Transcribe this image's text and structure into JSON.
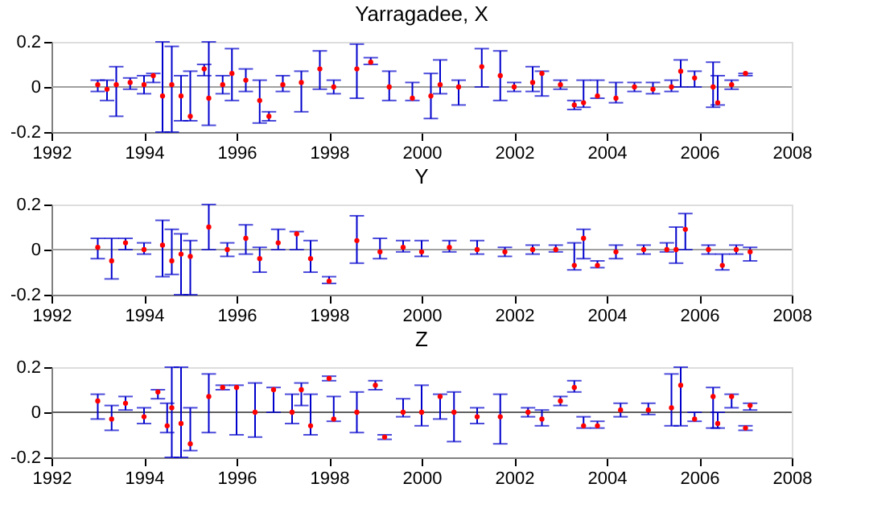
{
  "chart_data": [
    {
      "type": "scatter",
      "title": "Yarragadee, X",
      "xlim": [
        1992,
        2008
      ],
      "xticks": [
        1992,
        1994,
        1996,
        1998,
        2000,
        2002,
        2004,
        2006,
        2008
      ],
      "ylim": [
        -0.2,
        0.2
      ],
      "yticks": [
        -0.2,
        0,
        0.2
      ],
      "grid": false,
      "marker": "circle",
      "ref_lines": [
        {
          "axis": "y",
          "value": 0,
          "color": "#a0a0a0"
        }
      ],
      "x": [
        1993.0,
        1993.2,
        1993.4,
        1993.7,
        1994.0,
        1994.2,
        1994.4,
        1994.6,
        1994.8,
        1995.0,
        1995.3,
        1995.4,
        1995.7,
        1995.9,
        1996.2,
        1996.5,
        1996.7,
        1997.0,
        1997.4,
        1997.8,
        1998.1,
        1998.6,
        1998.9,
        1999.3,
        1999.8,
        2000.2,
        2000.4,
        2000.8,
        2001.3,
        2001.7,
        2002.0,
        2002.4,
        2002.6,
        2003.0,
        2003.3,
        2003.5,
        2003.8,
        2004.2,
        2004.6,
        2005.0,
        2005.4,
        2005.6,
        2005.9,
        2006.3,
        2006.4,
        2006.7,
        2007.0
      ],
      "series": [
        {
          "color": "#ff0000",
          "values": [
            0.01,
            -0.01,
            0.01,
            0.02,
            0.01,
            0.05,
            -0.04,
            0.01,
            -0.04,
            -0.13,
            0.08,
            -0.05,
            0.01,
            0.06,
            0.03,
            -0.06,
            -0.13,
            0.01,
            0.02,
            0.08,
            0.0,
            0.08,
            0.11,
            0.0,
            -0.05,
            -0.04,
            0.01,
            0.0,
            0.09,
            0.05,
            0.0,
            0.02,
            0.06,
            0.01,
            -0.08,
            -0.07,
            -0.04,
            -0.05,
            0.0,
            -0.01,
            0.0,
            0.07,
            0.04,
            0.0,
            -0.07,
            0.01,
            0.06
          ],
          "errors": [
            [
              -0.02,
              0.03
            ],
            [
              -0.06,
              0.03
            ],
            [
              -0.13,
              0.09
            ],
            [
              -0.01,
              0.04
            ],
            [
              -0.03,
              0.05
            ],
            [
              0.02,
              0.06
            ],
            [
              -0.2,
              0.2
            ],
            [
              -0.2,
              0.18
            ],
            [
              -0.15,
              0.05
            ],
            [
              -0.15,
              0.07
            ],
            [
              0.05,
              0.1
            ],
            [
              -0.17,
              0.2
            ],
            [
              -0.03,
              0.05
            ],
            [
              -0.06,
              0.17
            ],
            [
              -0.02,
              0.08
            ],
            [
              -0.16,
              0.03
            ],
            [
              -0.15,
              -0.11
            ],
            [
              -0.02,
              0.05
            ],
            [
              -0.11,
              0.07
            ],
            [
              -0.01,
              0.16
            ],
            [
              -0.03,
              0.03
            ],
            [
              -0.05,
              0.19
            ],
            [
              0.1,
              0.13
            ],
            [
              -0.06,
              0.07
            ],
            [
              -0.06,
              0.02
            ],
            [
              -0.14,
              0.06
            ],
            [
              -0.03,
              0.12
            ],
            [
              -0.08,
              0.03
            ],
            [
              0.0,
              0.17
            ],
            [
              -0.06,
              0.16
            ],
            [
              -0.02,
              0.02
            ],
            [
              -0.02,
              0.09
            ],
            [
              -0.04,
              0.07
            ],
            [
              -0.01,
              0.03
            ],
            [
              -0.1,
              -0.06
            ],
            [
              -0.09,
              0.03
            ],
            [
              -0.05,
              0.03
            ],
            [
              -0.07,
              0.02
            ],
            [
              -0.02,
              0.02
            ],
            [
              -0.03,
              0.02
            ],
            [
              -0.02,
              0.03
            ],
            [
              0.0,
              0.12
            ],
            [
              0.0,
              0.07
            ],
            [
              -0.09,
              0.11
            ],
            [
              -0.08,
              0.05
            ],
            [
              -0.01,
              0.03
            ],
            [
              0.05,
              0.06
            ]
          ]
        }
      ]
    },
    {
      "type": "scatter",
      "title": "Y",
      "xlim": [
        1992,
        2008
      ],
      "xticks": [
        1992,
        1994,
        1996,
        1998,
        2000,
        2002,
        2004,
        2006,
        2008
      ],
      "ylim": [
        -0.2,
        0.2
      ],
      "yticks": [
        -0.2,
        0,
        0.2
      ],
      "grid": false,
      "marker": "circle",
      "ref_lines": [
        {
          "axis": "y",
          "value": 0,
          "color": "#a0a0a0"
        }
      ],
      "x": [
        1993.0,
        1993.3,
        1993.6,
        1994.0,
        1994.4,
        1994.6,
        1994.8,
        1995.0,
        1995.4,
        1995.8,
        1996.2,
        1996.5,
        1996.9,
        1997.3,
        1997.6,
        1998.0,
        1998.6,
        1999.1,
        1999.6,
        2000.0,
        2000.6,
        2001.2,
        2001.8,
        2002.4,
        2002.9,
        2003.3,
        2003.5,
        2003.8,
        2004.2,
        2004.8,
        2005.3,
        2005.5,
        2005.7,
        2006.2,
        2006.5,
        2006.8,
        2007.1
      ],
      "series": [
        {
          "color": "#ff0000",
          "values": [
            0.01,
            -0.05,
            0.03,
            0.0,
            0.02,
            -0.05,
            -0.02,
            -0.03,
            0.1,
            0.0,
            0.05,
            -0.04,
            0.03,
            0.07,
            -0.04,
            -0.14,
            0.04,
            -0.01,
            0.01,
            -0.01,
            0.01,
            0.0,
            -0.01,
            0.0,
            0.0,
            -0.07,
            0.05,
            -0.07,
            -0.01,
            0.0,
            0.0,
            0.0,
            0.09,
            0.0,
            -0.07,
            0.0,
            -0.01
          ],
          "errors": [
            [
              -0.04,
              0.05
            ],
            [
              -0.13,
              0.05
            ],
            [
              0.0,
              0.05
            ],
            [
              -0.02,
              0.03
            ],
            [
              -0.12,
              0.13
            ],
            [
              -0.11,
              0.09
            ],
            [
              -0.2,
              0.07
            ],
            [
              -0.2,
              0.04
            ],
            [
              0.0,
              0.2
            ],
            [
              -0.03,
              0.03
            ],
            [
              -0.02,
              0.11
            ],
            [
              -0.1,
              0.01
            ],
            [
              0.0,
              0.09
            ],
            [
              0.0,
              0.08
            ],
            [
              -0.1,
              0.04
            ],
            [
              -0.15,
              -0.12
            ],
            [
              -0.06,
              0.15
            ],
            [
              -0.04,
              0.05
            ],
            [
              -0.01,
              0.04
            ],
            [
              -0.03,
              0.04
            ],
            [
              -0.01,
              0.04
            ],
            [
              -0.02,
              0.04
            ],
            [
              -0.03,
              0.01
            ],
            [
              -0.02,
              0.02
            ],
            [
              -0.01,
              0.02
            ],
            [
              -0.09,
              0.03
            ],
            [
              -0.04,
              0.09
            ],
            [
              -0.08,
              -0.05
            ],
            [
              -0.04,
              0.02
            ],
            [
              -0.02,
              0.02
            ],
            [
              -0.01,
              0.03
            ],
            [
              -0.06,
              0.1
            ],
            [
              0.0,
              0.16
            ],
            [
              -0.02,
              0.02
            ],
            [
              -0.09,
              -0.02
            ],
            [
              -0.02,
              0.02
            ],
            [
              -0.05,
              0.01
            ]
          ]
        }
      ]
    },
    {
      "type": "scatter",
      "title": "Z",
      "xlim": [
        1992,
        2008
      ],
      "xticks": [
        1992,
        1994,
        1996,
        1998,
        2000,
        2002,
        2004,
        2006,
        2008
      ],
      "ylim": [
        -0.2,
        0.2
      ],
      "yticks": [
        -0.2,
        0,
        0.2
      ],
      "grid": false,
      "marker": "circle",
      "ref_lines": [
        {
          "axis": "y",
          "value": 0,
          "color": "#606060"
        }
      ],
      "x": [
        1993.0,
        1993.3,
        1993.6,
        1994.0,
        1994.3,
        1994.5,
        1994.6,
        1994.8,
        1995.0,
        1995.4,
        1995.7,
        1996.0,
        1996.4,
        1996.8,
        1997.2,
        1997.4,
        1997.6,
        1998.0,
        1998.1,
        1998.6,
        1999.0,
        1999.2,
        1999.6,
        2000.0,
        2000.4,
        2000.7,
        2001.2,
        2001.7,
        2002.3,
        2002.6,
        2003.0,
        2003.3,
        2003.5,
        2003.8,
        2004.3,
        2004.9,
        2005.4,
        2005.6,
        2005.9,
        2006.3,
        2006.4,
        2006.7,
        2007.0,
        2007.1
      ],
      "series": [
        {
          "color": "#ff0000",
          "values": [
            0.05,
            -0.03,
            0.04,
            -0.02,
            0.09,
            -0.06,
            0.02,
            -0.05,
            -0.14,
            0.07,
            0.11,
            0.11,
            0.0,
            0.1,
            0.0,
            0.1,
            -0.06,
            0.15,
            -0.03,
            0.0,
            0.12,
            -0.11,
            0.0,
            0.0,
            0.07,
            0.0,
            -0.02,
            -0.02,
            0.0,
            -0.03,
            0.05,
            0.11,
            -0.06,
            -0.06,
            0.01,
            0.01,
            0.02,
            0.12,
            -0.03,
            0.07,
            -0.05,
            0.07,
            -0.07,
            0.03
          ],
          "errors": [
            [
              -0.03,
              0.08
            ],
            [
              -0.08,
              0.03
            ],
            [
              0.01,
              0.07
            ],
            [
              -0.05,
              0.02
            ],
            [
              0.06,
              0.1
            ],
            [
              -0.09,
              0.04
            ],
            [
              -0.2,
              0.2
            ],
            [
              -0.2,
              0.2
            ],
            [
              -0.17,
              0.02
            ],
            [
              -0.09,
              0.17
            ],
            [
              0.1,
              0.12
            ],
            [
              -0.1,
              0.12
            ],
            [
              -0.11,
              0.13
            ],
            [
              0.0,
              0.11
            ],
            [
              -0.05,
              0.08
            ],
            [
              0.03,
              0.13
            ],
            [
              -0.1,
              0.08
            ],
            [
              0.14,
              0.16
            ],
            [
              -0.04,
              0.07
            ],
            [
              -0.09,
              0.09
            ],
            [
              0.1,
              0.14
            ],
            [
              -0.12,
              -0.1
            ],
            [
              -0.02,
              0.06
            ],
            [
              -0.06,
              0.12
            ],
            [
              -0.03,
              0.08
            ],
            [
              -0.13,
              0.09
            ],
            [
              -0.05,
              0.02
            ],
            [
              -0.14,
              0.08
            ],
            [
              -0.02,
              0.02
            ],
            [
              -0.06,
              0.01
            ],
            [
              0.03,
              0.07
            ],
            [
              0.09,
              0.14
            ],
            [
              -0.07,
              -0.02
            ],
            [
              -0.07,
              -0.04
            ],
            [
              -0.02,
              0.04
            ],
            [
              -0.01,
              0.04
            ],
            [
              -0.06,
              0.17
            ],
            [
              -0.06,
              0.2
            ],
            [
              -0.04,
              0.0
            ],
            [
              -0.07,
              0.11
            ],
            [
              -0.07,
              0.0
            ],
            [
              0.02,
              0.08
            ],
            [
              -0.08,
              -0.06
            ],
            [
              0.01,
              0.04
            ]
          ]
        }
      ]
    }
  ]
}
